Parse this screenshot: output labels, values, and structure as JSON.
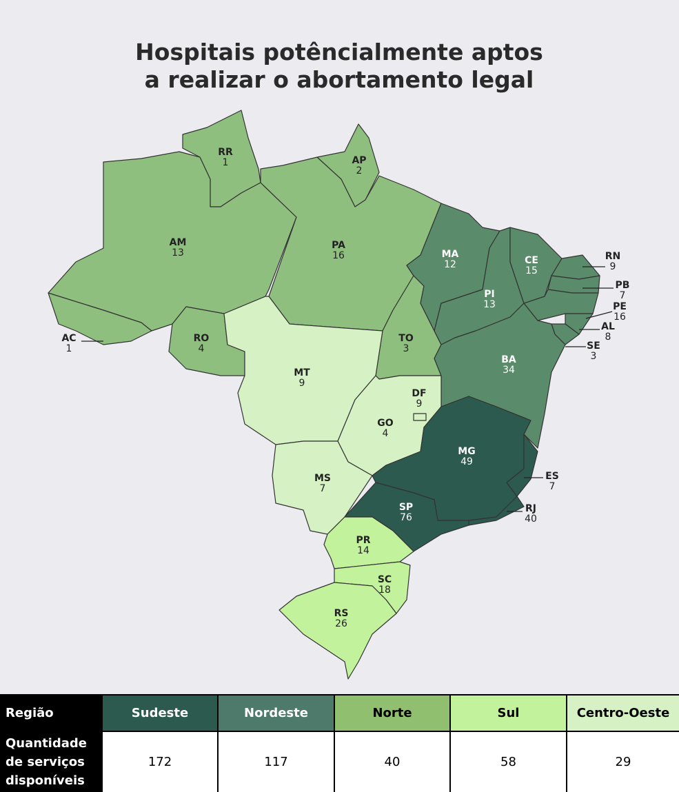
{
  "title": "Hospitais potêncialmente aptos a realizar o abortamento legal",
  "states": [
    {
      "abbr": "RR",
      "value": 1,
      "color": "#8fbf7f"
    },
    {
      "abbr": "AP",
      "value": 2,
      "color": "#8fbf7f"
    },
    {
      "abbr": "AM",
      "value": 13,
      "color": "#8fbf7f"
    },
    {
      "abbr": "PA",
      "value": 16,
      "color": "#8fbf7f"
    },
    {
      "abbr": "AC",
      "value": 1,
      "color": "#8fbf7f"
    },
    {
      "abbr": "RO",
      "value": 4,
      "color": "#8fbf7f"
    },
    {
      "abbr": "TO",
      "value": 3,
      "color": "#8fbf7f"
    },
    {
      "abbr": "MA",
      "value": 12,
      "color": "#5a8b6a"
    },
    {
      "abbr": "PI",
      "value": 13,
      "color": "#5a8b6a"
    },
    {
      "abbr": "CE",
      "value": 15,
      "color": "#5a8b6a"
    },
    {
      "abbr": "RN",
      "value": 9,
      "color": "#5a8b6a"
    },
    {
      "abbr": "PB",
      "value": 7,
      "color": "#5a8b6a"
    },
    {
      "abbr": "PE",
      "value": 16,
      "color": "#5a8b6a"
    },
    {
      "abbr": "AL",
      "value": 8,
      "color": "#5a8b6a"
    },
    {
      "abbr": "SE",
      "value": 3,
      "color": "#5a8b6a"
    },
    {
      "abbr": "BA",
      "value": 34,
      "color": "#5a8b6a"
    },
    {
      "abbr": "MT",
      "value": 9,
      "color": "#d6f2c4"
    },
    {
      "abbr": "GO",
      "value": 4,
      "color": "#d6f2c4"
    },
    {
      "abbr": "DF",
      "value": 9,
      "color": "#d6f2c4"
    },
    {
      "abbr": "MS",
      "value": 7,
      "color": "#d6f2c4"
    },
    {
      "abbr": "MG",
      "value": 49,
      "color": "#2d5a4e"
    },
    {
      "abbr": "ES",
      "value": 7,
      "color": "#2d5a4e"
    },
    {
      "abbr": "RJ",
      "value": 40,
      "color": "#2d5a4e"
    },
    {
      "abbr": "SP",
      "value": 76,
      "color": "#2d5a4e"
    },
    {
      "abbr": "PR",
      "value": 14,
      "color": "#c3f29c"
    },
    {
      "abbr": "SC",
      "value": 18,
      "color": "#c3f29c"
    },
    {
      "abbr": "RS",
      "value": 26,
      "color": "#c3f29c"
    }
  ],
  "table": {
    "header": [
      "Região",
      "Sudeste",
      "Nordeste",
      "Norte",
      "Sul",
      "Centro-Oeste"
    ],
    "header_colors": [
      "#000000",
      "#2d5a4e",
      "#4e7a6b",
      "#8fbf6f",
      "#c3f29c",
      "#d6f2c4"
    ],
    "rows": [
      [
        "Quantidade de serviços disponíveis",
        172,
        117,
        40,
        58,
        29
      ]
    ]
  }
}
